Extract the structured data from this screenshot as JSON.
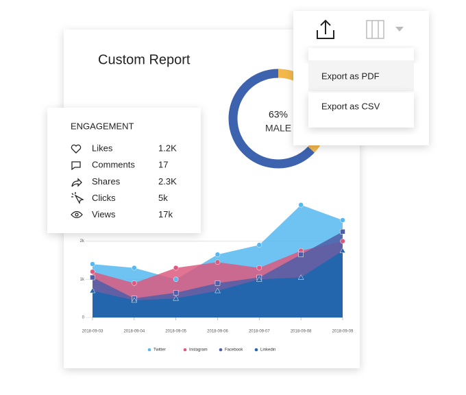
{
  "report": {
    "title": "Custom Report"
  },
  "engagement": {
    "title": "ENGAGEMENT",
    "rows": [
      {
        "label": "Likes",
        "value": "1.2K"
      },
      {
        "label": "Comments",
        "value": "17"
      },
      {
        "label": "Shares",
        "value": "2.3K"
      },
      {
        "label": "Clicks",
        "value": "5k"
      },
      {
        "label": "Views",
        "value": "17k"
      }
    ]
  },
  "export_menu": {
    "items": [
      "Export as PDF",
      "Export as CSV"
    ]
  },
  "chart_data": [
    {
      "type": "area",
      "x": [
        "2018-09-03",
        "2018-09-04",
        "2018-09-05",
        "2018-09-06",
        "2018-09-07",
        "2018-09-08",
        "2018-09-09"
      ],
      "series": [
        {
          "name": "Twitter",
          "color": "#55b8f0",
          "marker": "circle",
          "values": [
            1400,
            1300,
            1000,
            1650,
            1900,
            2950,
            2550
          ]
        },
        {
          "name": "Instagram",
          "color": "#dc5a80",
          "marker": "circle",
          "values": [
            1200,
            900,
            1300,
            1450,
            1300,
            1750,
            2000
          ]
        },
        {
          "name": "Facebook",
          "color": "#4f5ea8",
          "marker": "square",
          "values": [
            1050,
            500,
            650,
            900,
            1050,
            1650,
            2250
          ]
        },
        {
          "name": "Linkedin",
          "color": "#2366ad",
          "marker": "triangle",
          "values": [
            700,
            450,
            500,
            700,
            1000,
            1050,
            1750
          ]
        }
      ],
      "ylim": [
        0,
        3000
      ],
      "yticks": [
        0,
        {
          "value": 1000,
          "label": "1k"
        },
        {
          "value": 2000,
          "label": "2k"
        }
      ],
      "grid": true,
      "legend": "bottom"
    },
    {
      "type": "donut",
      "values": [
        63,
        37
      ],
      "colors": [
        "#3d62ae",
        "#f2b84b"
      ],
      "center_value_label": "63%",
      "center_label": "MALE"
    }
  ]
}
